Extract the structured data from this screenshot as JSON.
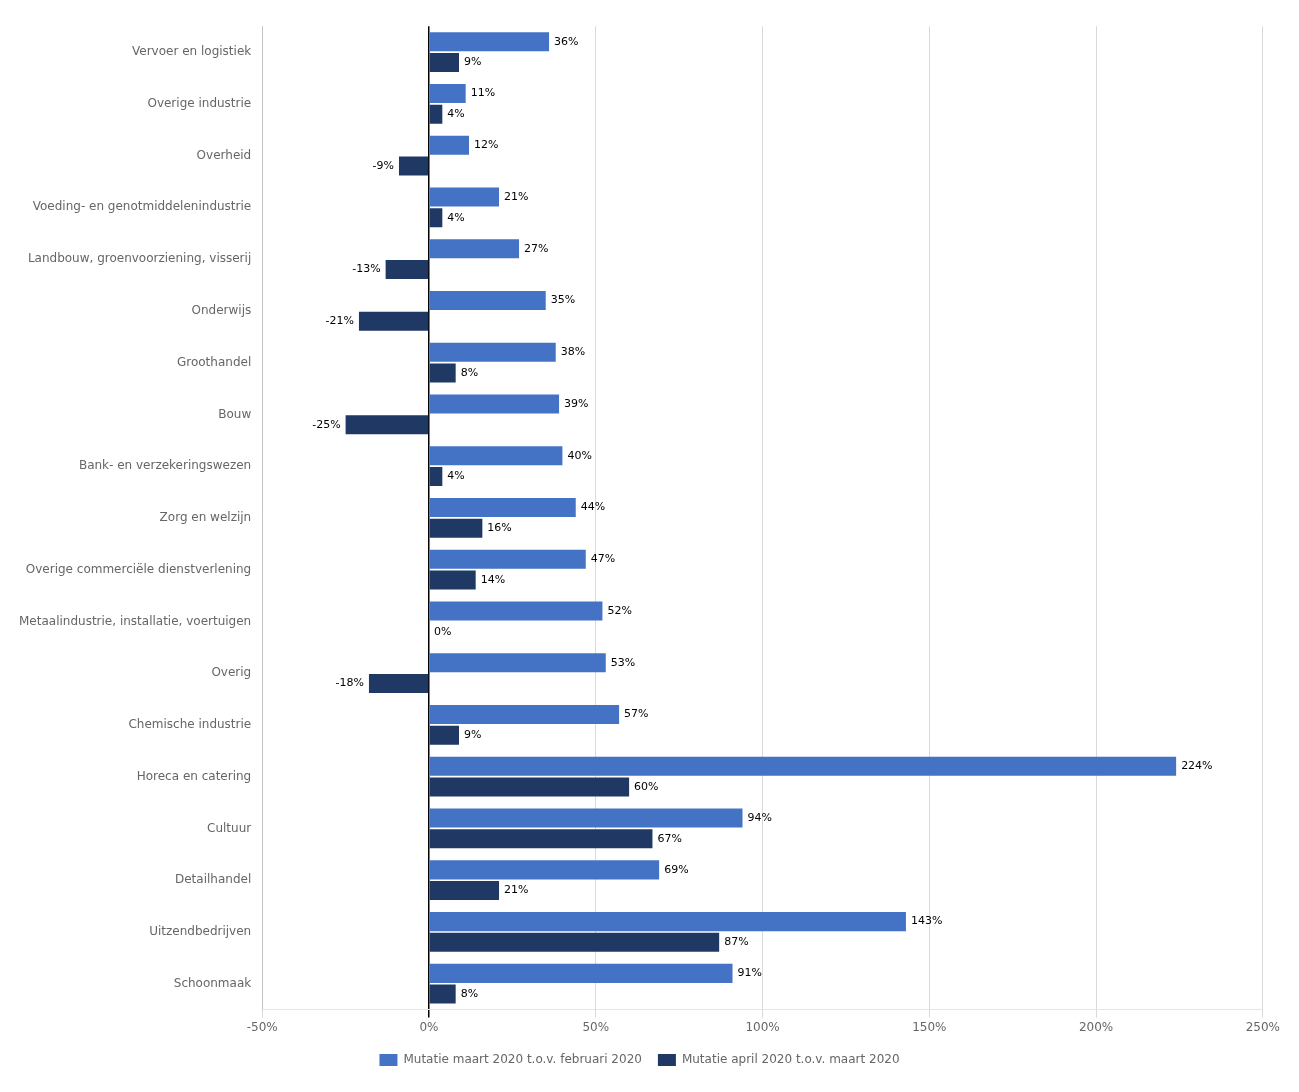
{
  "chart_data": {
    "type": "bar",
    "orientation": "horizontal",
    "categories": [
      "Vervoer en logistiek",
      "Overige industrie",
      "Overheid",
      "Voeding- en genotmiddelenindustrie",
      "Landbouw, groenvoorziening, visserij",
      "Onderwijs",
      "Groothandel",
      "Bouw",
      "Bank- en verzekeringswezen",
      "Zorg en welzijn",
      "Overige commerciële dienstverlening",
      "Metaalindustrie, installatie, voertuigen",
      "Overig",
      "Chemische industrie",
      "Horeca en catering",
      "Cultuur",
      "Detailhandel",
      "Uitzendbedrijven",
      "Schoonmaak"
    ],
    "series": [
      {
        "name": "Mutatie maart 2020 t.o.v. februari 2020",
        "color": "#4472c4",
        "values": [
          36,
          11,
          12,
          21,
          27,
          35,
          38,
          39,
          40,
          44,
          47,
          52,
          53,
          57,
          224,
          94,
          69,
          143,
          91
        ],
        "value_labels": [
          "36%",
          "11%",
          "12%",
          "21%",
          "27%",
          "35%",
          "38%",
          "39%",
          "40%",
          "44%",
          "47%",
          "52%",
          "53%",
          "57%",
          "224%",
          "94%",
          "69%",
          "143%",
          "91%"
        ]
      },
      {
        "name": "Mutatie april 2020 t.o.v. maart 2020",
        "color": "#1f3864",
        "values": [
          9,
          4,
          -9,
          4,
          -13,
          -21,
          8,
          -25,
          4,
          16,
          14,
          0,
          -18,
          9,
          60,
          67,
          21,
          87,
          8
        ],
        "value_labels": [
          "9%",
          "4%",
          "-9%",
          "4%",
          "-13%",
          "-21%",
          "8%",
          "-25%",
          "4%",
          "16%",
          "14%",
          "0%",
          "-18%",
          "9%",
          "60%",
          "67%",
          "21%",
          "87%",
          "8%"
        ]
      }
    ],
    "xlim": [
      -50,
      250
    ],
    "xticks": [
      {
        "value": -50,
        "label": "-50%"
      },
      {
        "value": 0,
        "label": "0%"
      },
      {
        "value": 50,
        "label": "50%"
      },
      {
        "value": 100,
        "label": "100%"
      },
      {
        "value": 150,
        "label": "150%"
      },
      {
        "value": 200,
        "label": "200%"
      },
      {
        "value": 250,
        "label": "250%"
      }
    ],
    "grid": true,
    "legend": "bottom",
    "data_labels": true
  }
}
